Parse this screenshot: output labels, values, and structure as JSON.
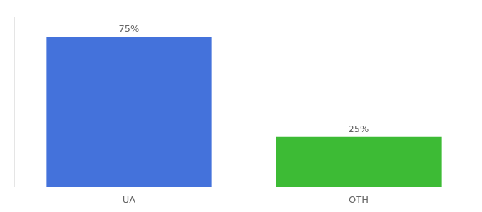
{
  "chart_data": {
    "type": "bar",
    "categories": [
      "UA",
      "OTH"
    ],
    "values": [
      75,
      25
    ],
    "value_labels": [
      "75%",
      "25%"
    ],
    "colors": [
      "#4472db",
      "#3dbb35"
    ],
    "ylim": [
      0,
      85
    ],
    "data_labels": true,
    "tick_labels": "x",
    "grid": false
  }
}
